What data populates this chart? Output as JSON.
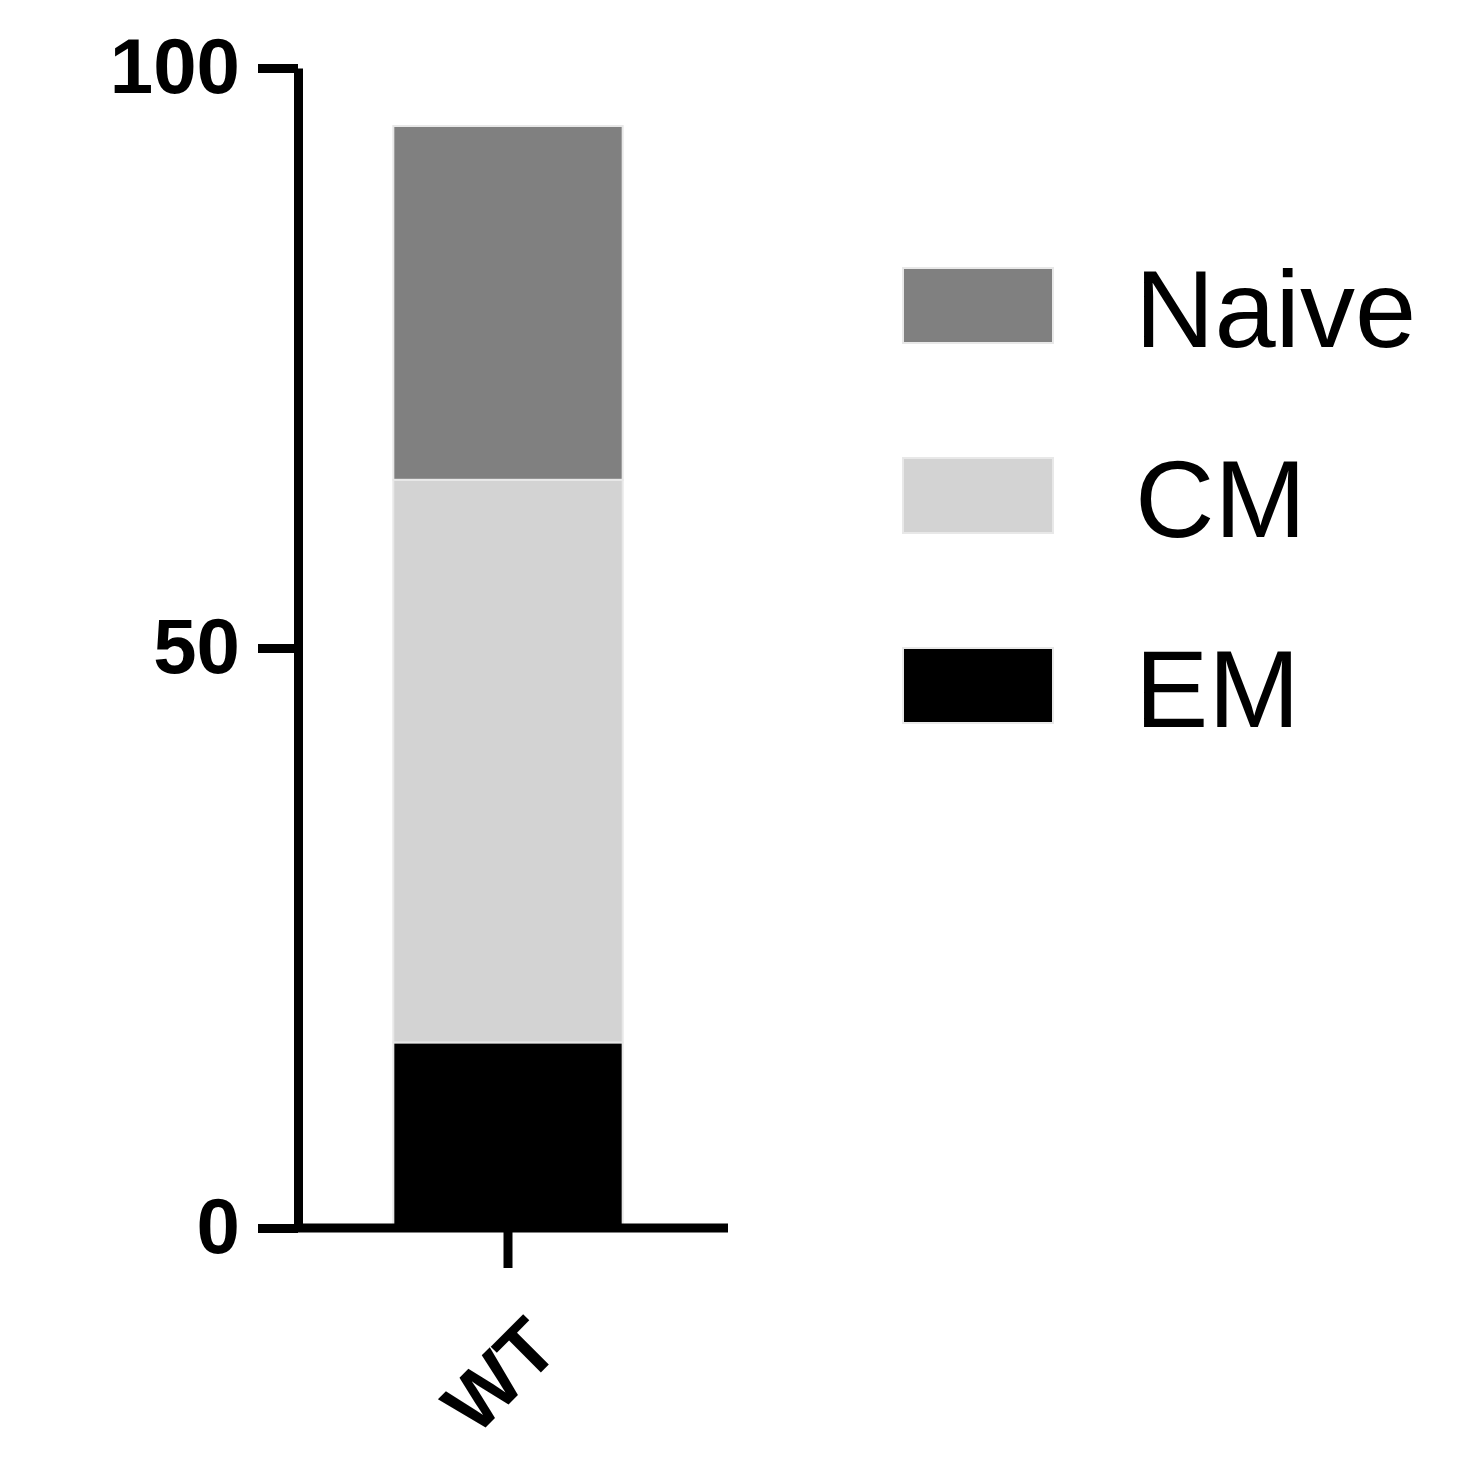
{
  "chart_data": {
    "type": "bar",
    "stacked": true,
    "categories": [
      "WT"
    ],
    "series": [
      {
        "name": "EM",
        "color": "#000000",
        "values": [
          16
        ]
      },
      {
        "name": "CM",
        "color": "#d3d3d3",
        "values": [
          48.5
        ]
      },
      {
        "name": "Naive",
        "color": "#808080",
        "values": [
          30.5
        ]
      }
    ],
    "ylim": [
      0,
      100
    ],
    "yticks": [
      0,
      50,
      100
    ],
    "legend": "right"
  }
}
